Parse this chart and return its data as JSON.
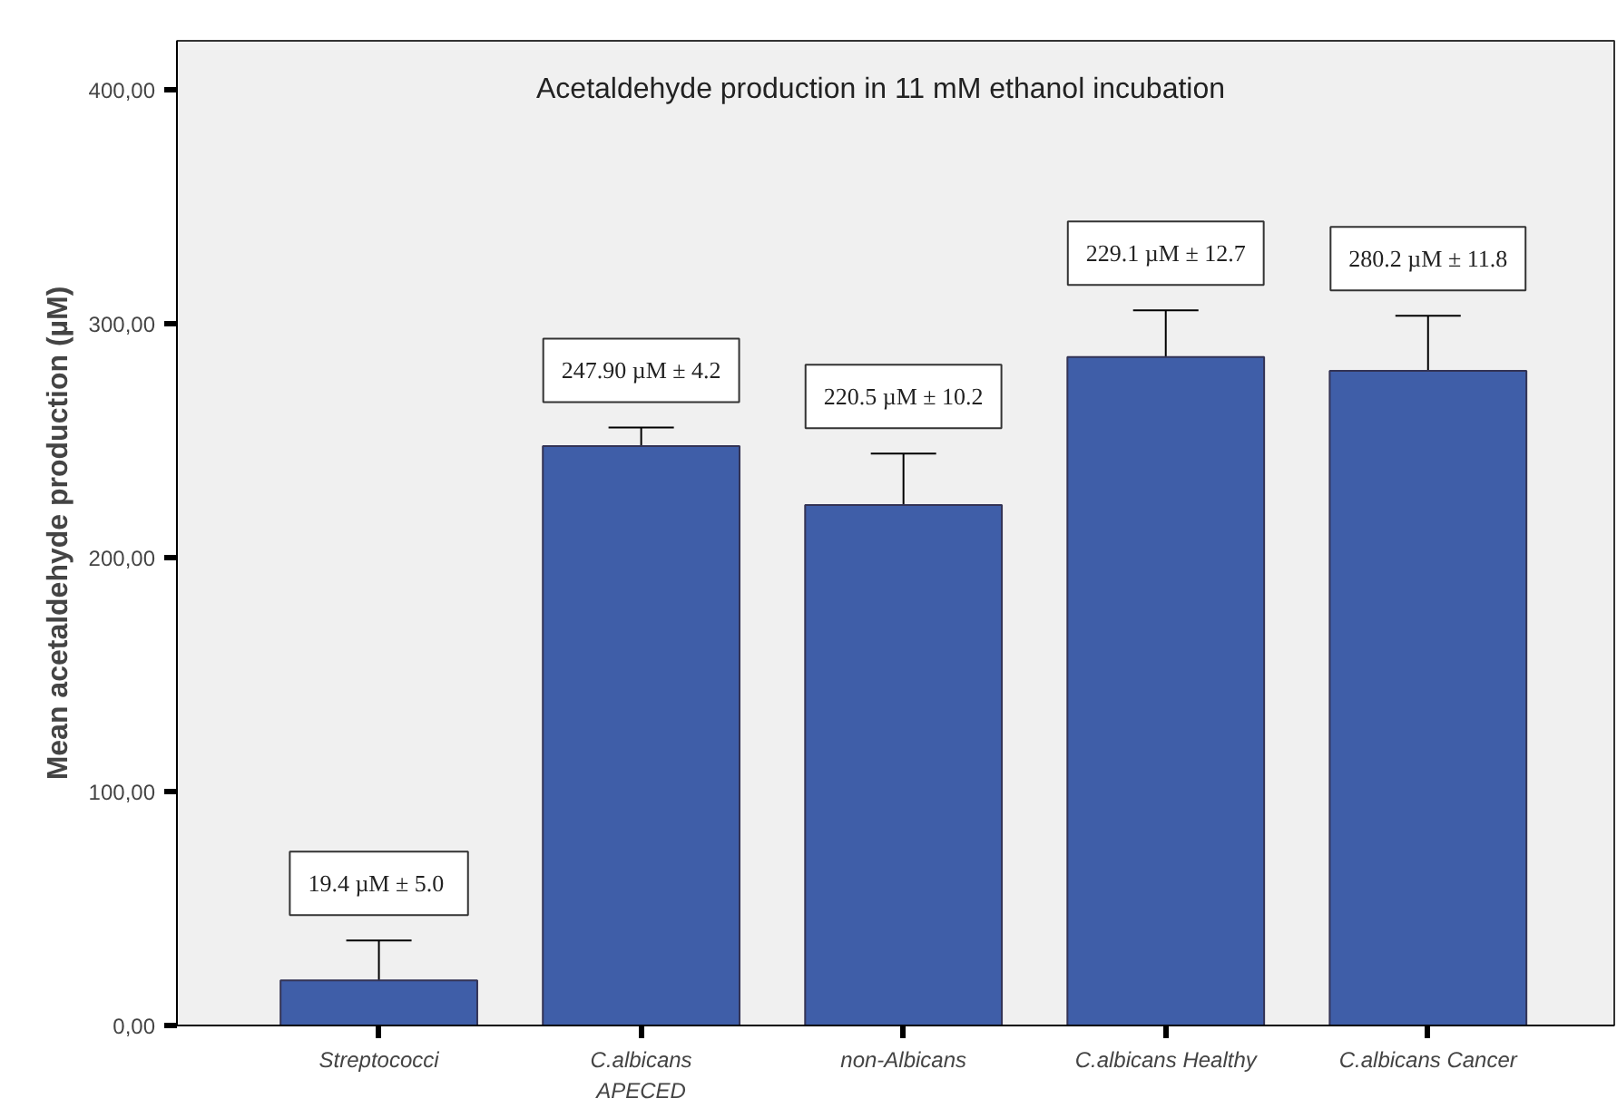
{
  "chart_data": {
    "type": "bar",
    "title": "Acetaldehyde production in 11 mM ethanol incubation",
    "ylabel": "Mean acetaldehyde production (µM)",
    "categories": [
      "Streptococci",
      "C.albicans\nAPECED",
      "non-Albicans",
      "C.albicans Healthy",
      "C.albicans Cancer"
    ],
    "values": [
      19.3,
      247.7,
      222.5,
      285.8,
      279.9
    ],
    "errors": [
      17,
      8,
      22,
      20,
      23.5
    ],
    "color": "#3f5ea8",
    "ylim": [
      0,
      421
    ],
    "yticks": [
      {
        "value": 0,
        "label": "0,00"
      },
      {
        "value": 100,
        "label": "100,00"
      },
      {
        "value": 200,
        "label": "200,00"
      },
      {
        "value": 300,
        "label": "300,00"
      },
      {
        "value": 400,
        "label": "400,00"
      }
    ],
    "grid": false,
    "annotations": [
      "19.4 µM ±  5.0",
      "247.90 µM ± 4.2",
      "220.5 µM ± 10.2",
      "229.1 µM ± 12.7",
      "280.2 µM ± 11.8"
    ]
  }
}
